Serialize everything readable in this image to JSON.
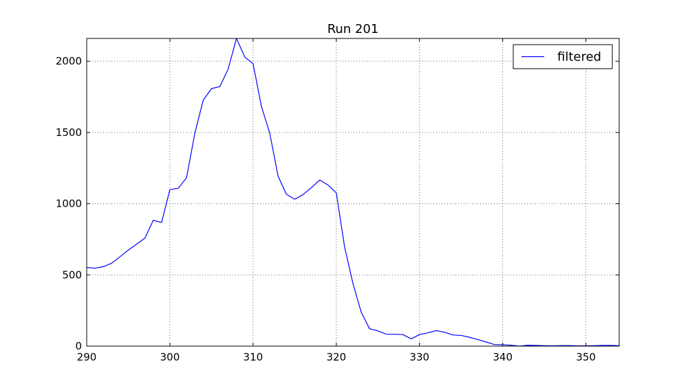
{
  "chart_data": {
    "type": "line",
    "title": "Run 201",
    "xlabel": "",
    "ylabel": "",
    "xlim": [
      290,
      354
    ],
    "ylim": [
      0,
      2160
    ],
    "xticks": [
      290,
      300,
      310,
      320,
      330,
      340,
      350
    ],
    "yticks": [
      0,
      500,
      1000,
      1500,
      2000
    ],
    "grid": true,
    "legend_position": "top-right",
    "series": [
      {
        "name": "filtered",
        "color": "#0000ff",
        "x": [
          290,
          291,
          292,
          293,
          294,
          295,
          296,
          297,
          298,
          299,
          300,
          301,
          302,
          303,
          304,
          305,
          306,
          307,
          308,
          309,
          310,
          311,
          312,
          313,
          314,
          315,
          316,
          317,
          318,
          319,
          320,
          321,
          322,
          323,
          324,
          325,
          326,
          327,
          328,
          329,
          330,
          331,
          332,
          333,
          334,
          335,
          336,
          337,
          338,
          339,
          340,
          341,
          342,
          343,
          344,
          345,
          346,
          347,
          348,
          349,
          350,
          351,
          352,
          353,
          354
        ],
        "y": [
          552,
          547,
          558,
          582,
          627,
          674,
          716,
          758,
          883,
          868,
          1099,
          1108,
          1182,
          1495,
          1726,
          1808,
          1822,
          1945,
          2160,
          2030,
          1982,
          1683,
          1495,
          1194,
          1066,
          1031,
          1064,
          1112,
          1166,
          1131,
          1076,
          695,
          440,
          237,
          122,
          107,
          84,
          83,
          81,
          51,
          81,
          93,
          109,
          98,
          78,
          75,
          62,
          46,
          29,
          11,
          10,
          6,
          0,
          6,
          5,
          3,
          2,
          4,
          4,
          2,
          2,
          3,
          5,
          5,
          3
        ]
      }
    ]
  }
}
